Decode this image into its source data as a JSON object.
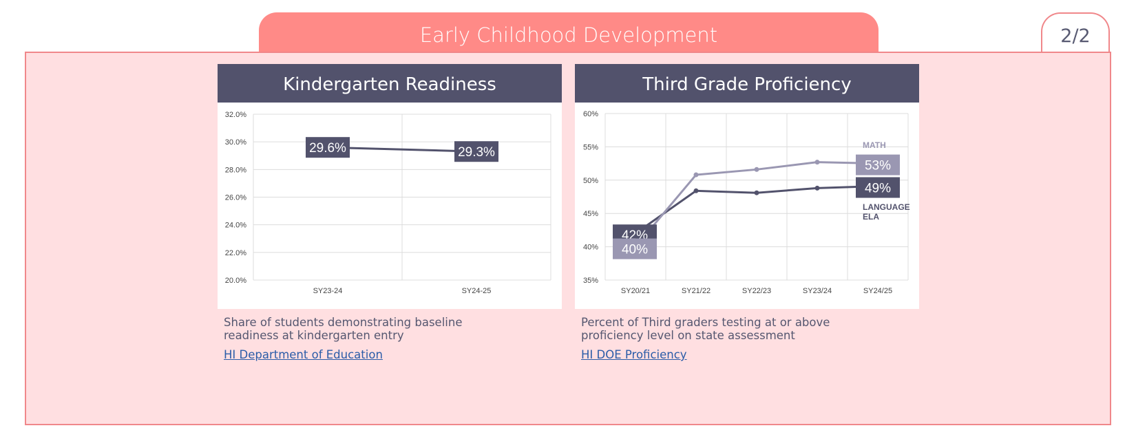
{
  "header": {
    "title": "Early Childhood Development",
    "page_indicator": "2/2"
  },
  "colors": {
    "accent": "#ff8a87",
    "panel_bg": "#ffdfe1",
    "card_header": "#52526c",
    "ela": "#52526c",
    "math": "#9a97b2",
    "link": "#2a5ca8"
  },
  "cards": [
    {
      "title": "Kindergarten Readiness",
      "description_line1": "Share of students demonstrating baseline",
      "description_line2": "readiness at kindergarten entry",
      "source_link": "HI Department of Education"
    },
    {
      "title": "Third Grade Proficiency",
      "description_line1": "Percent of Third graders testing at or above",
      "description_line2": "proficiency level on state assessment",
      "source_link": "HI DOE Proficiency"
    }
  ],
  "chart_data": [
    {
      "type": "line",
      "title": "Kindergarten Readiness",
      "categories": [
        "SY23-24",
        "SY24-25"
      ],
      "series": [
        {
          "values": [
            29.6,
            29.3
          ],
          "labels": [
            "29.6%",
            "29.3%"
          ]
        }
      ],
      "ylim": [
        20,
        32
      ],
      "yticks": [
        "20.0%",
        "22.0%",
        "24.0%",
        "26.0%",
        "28.0%",
        "30.0%",
        "32.0%"
      ],
      "grid": true
    },
    {
      "type": "line",
      "title": "Third Grade Proficiency",
      "categories": [
        "SY20/21",
        "SY21/22",
        "SY22/23",
        "SY23/24",
        "SY24/25"
      ],
      "series": [
        {
          "name": "MATH",
          "values": [
            40,
            50.8,
            51.6,
            52.7,
            52.5
          ],
          "start_label": "40%",
          "end_label": "53%"
        },
        {
          "name": "LANGUAGE ELA",
          "values": [
            42,
            48.4,
            48.1,
            48.8,
            49.1
          ],
          "start_label": "42%",
          "end_label": "49%"
        }
      ],
      "ylim": [
        35,
        60
      ],
      "yticks": [
        "35%",
        "40%",
        "45%",
        "50%",
        "55%",
        "60%"
      ],
      "grid": true
    }
  ]
}
